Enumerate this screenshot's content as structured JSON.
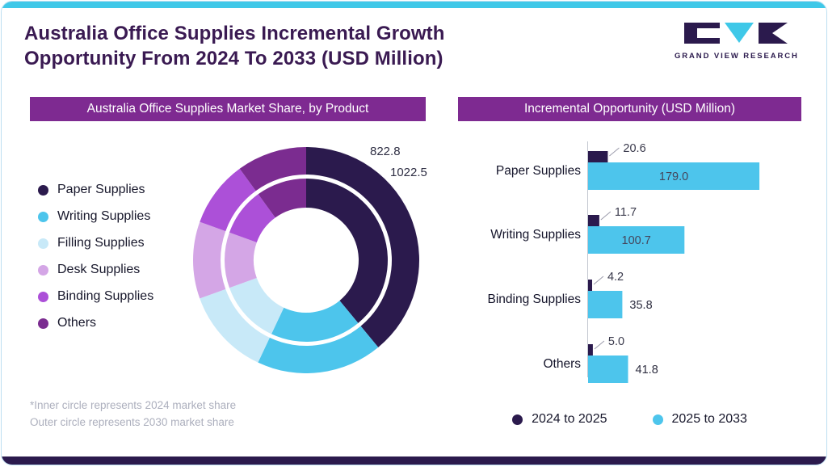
{
  "header": {
    "title_line1": "Australia Office Supplies Incremental Growth",
    "title_line2": "Opportunity From 2024 To 2033 (USD Million)",
    "logo_text": "GRAND VIEW RESEARCH"
  },
  "panels": {
    "left_header": "Australia Office Supplies Market Share, by Product",
    "right_header": "Incremental Opportunity (USD Million)"
  },
  "footnote": {
    "line1": "*Inner circle represents 2024 market share",
    "line2": "Outer circle represents 2030 market share"
  },
  "colors": {
    "accent_cyan": "#3FC8E8",
    "dark_purple": "#2B1A4D",
    "panel_purple": "#7E2A91",
    "title_purple": "#3A1A52"
  },
  "chart_data": [
    {
      "type": "pie",
      "subtype": "double-ring-donut",
      "title": "Australia Office Supplies Market Share, by Product",
      "rings": {
        "inner": {
          "year": "2024",
          "total_label": "822.8"
        },
        "outer": {
          "year": "2030",
          "total_label": "1022.5"
        }
      },
      "segments": [
        {
          "label": "Paper Supplies",
          "color": "#2B1A4D",
          "share_pct": 39
        },
        {
          "label": "Writing Supplies",
          "color": "#4DC5EC",
          "share_pct": 18
        },
        {
          "label": "Filling Supplies",
          "color": "#C8E9F8",
          "share_pct": 12.5
        },
        {
          "label": "Desk Supplies",
          "color": "#D4A6E6",
          "share_pct": 11
        },
        {
          "label": "Binding Supplies",
          "color": "#AC50D8",
          "share_pct": 9.5
        },
        {
          "label": "Others",
          "color": "#7B2C90",
          "share_pct": 10
        }
      ],
      "note": "Shares estimated from arc angles; inner ring total 822.8 (2024), outer ring total 1022.5 (2030)"
    },
    {
      "type": "bar",
      "orientation": "horizontal",
      "title": "Incremental Opportunity (USD Million)",
      "categories": [
        "Paper Supplies",
        "Writing Supplies",
        "Binding Supplies",
        "Others"
      ],
      "series": [
        {
          "name": "2024 to 2025",
          "color": "#2B1A4D",
          "values": [
            20.6,
            11.7,
            4.2,
            5.0
          ]
        },
        {
          "name": "2025 to 2033",
          "color": "#4DC5EC",
          "values": [
            179.0,
            100.7,
            35.8,
            41.8
          ]
        }
      ],
      "xlim": [
        0,
        185
      ],
      "legend_position": "bottom"
    }
  ]
}
